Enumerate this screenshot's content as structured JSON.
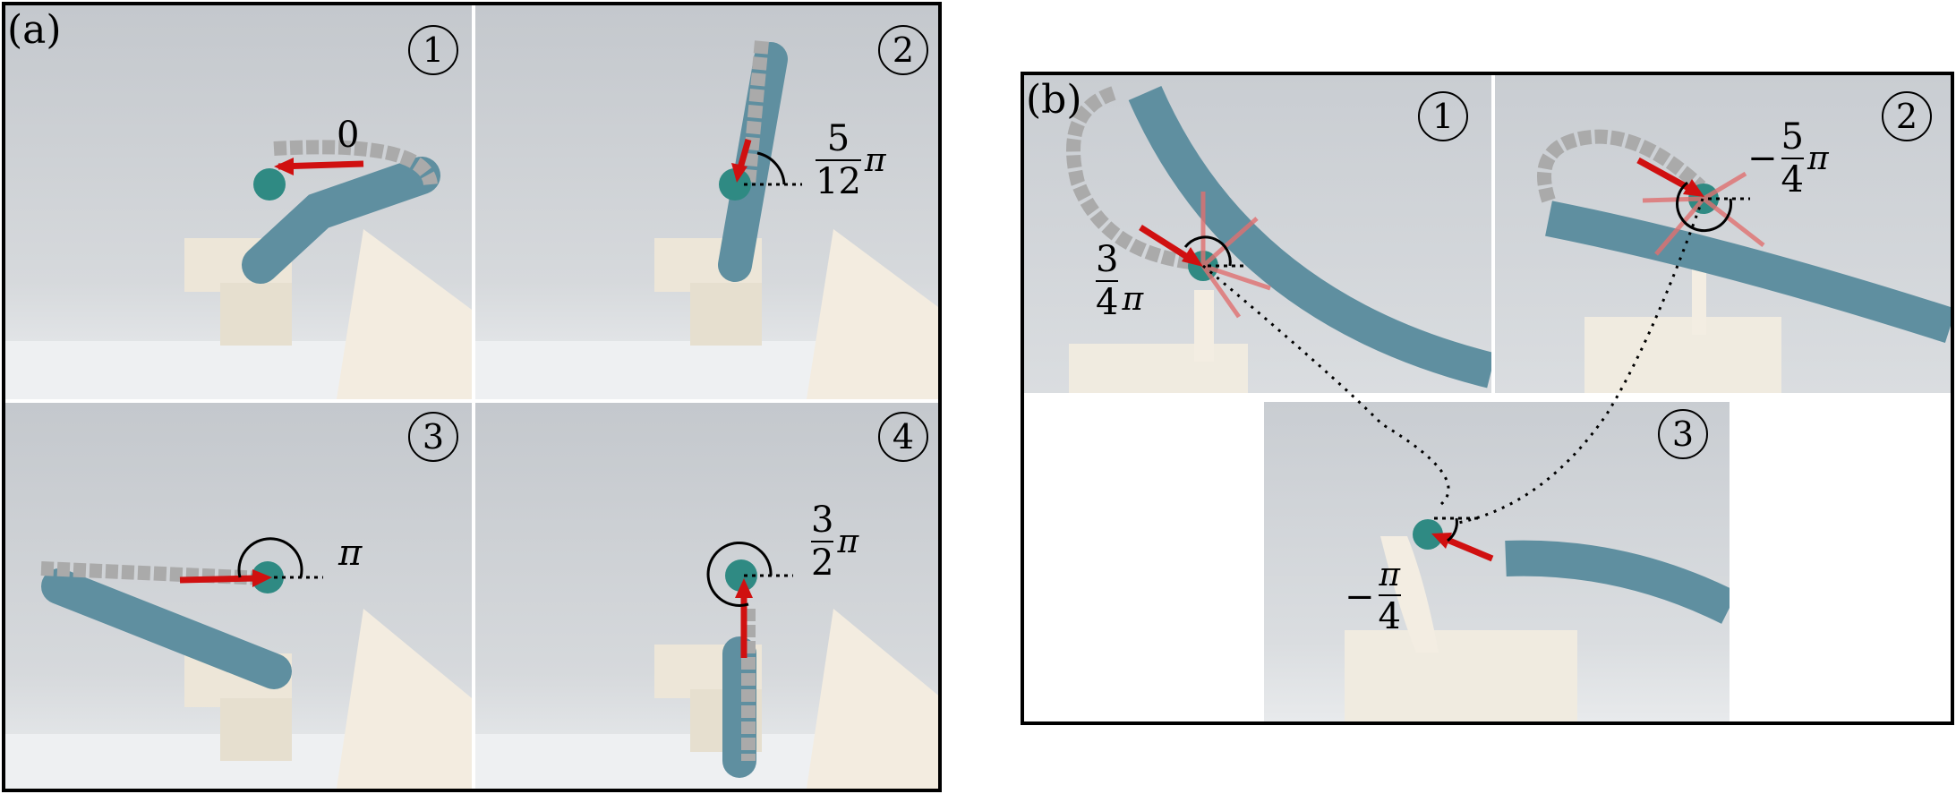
{
  "panel_a": {
    "label": "(a)",
    "subpanels": [
      {
        "number": "1",
        "angle": "0"
      },
      {
        "number": "2",
        "angle_num": "5",
        "angle_den": "12",
        "angle_sym": "π"
      },
      {
        "number": "3",
        "angle": "π"
      },
      {
        "number": "4",
        "angle_num": "3",
        "angle_den": "2",
        "angle_sym": "π"
      }
    ]
  },
  "panel_b": {
    "label": "(b)",
    "subpanels": [
      {
        "number": "1",
        "angle_num": "3",
        "angle_den": "4",
        "angle_sym": "π"
      },
      {
        "number": "2",
        "angle_sign": "−",
        "angle_num": "5",
        "angle_den": "4",
        "angle_sym": "π"
      },
      {
        "number": "3",
        "angle_sign": "−",
        "angle_num": "π",
        "angle_den": "4"
      }
    ]
  },
  "colors": {
    "arrow": "#d01010",
    "tube": "#5f8fa0",
    "background": "#c9cdd2",
    "tip": "#2f8a83"
  }
}
